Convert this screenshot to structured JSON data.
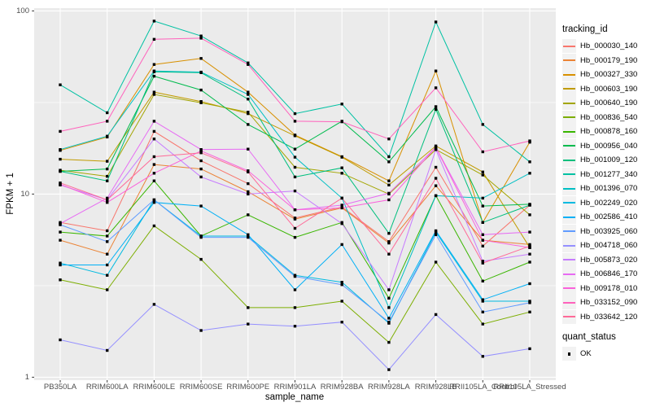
{
  "page": {
    "background": "#FFFFFF"
  },
  "axis": {
    "text_color": "#4D4D4D",
    "title_color": "#000000",
    "tick_color": "#333333"
  },
  "legend": {
    "tracking_title": "tracking_id",
    "quant_title": "quant_status",
    "quant_items": [
      {
        "label": "OK",
        "symbol": "black-square-point"
      }
    ]
  },
  "chart_data": {
    "type": "line",
    "title": "",
    "xlabel": "sample_name",
    "ylabel": "FPKM + 1",
    "yscale": "log10",
    "ylim": [
      1,
      100
    ],
    "y_major_ticks": [
      1,
      10,
      100
    ],
    "y_minor_ticks": [
      3.162,
      31.62
    ],
    "grid": "on",
    "panel_bg": "#EBEBEB",
    "grid_color": "#FFFFFF",
    "point_shape": "filled-square",
    "point_color": "#000000",
    "legend_position": "right",
    "categories": [
      "PB350LA",
      "RRIM600LA",
      "RRIM600LE",
      "RRIM600SE",
      "RRIM600PE",
      "RRIM901LA",
      "RRIM928BA",
      "RRIM928LA",
      "RRIM928LB",
      "RRII105LA_Control",
      "RRII105LA_Stressed"
    ],
    "series": [
      {
        "name": "Hb_000030_140",
        "color": "#F8766D",
        "values": [
          7.0,
          6.3,
          22,
          15.2,
          11.4,
          7.4,
          8.5,
          5.5,
          14,
          5.2,
          8.7
        ]
      },
      {
        "name": "Hb_000179_190",
        "color": "#EB8335",
        "values": [
          5.6,
          4.7,
          14.5,
          13.7,
          10.3,
          7.3,
          8.4,
          5.4,
          11.1,
          5.6,
          5.3
        ]
      },
      {
        "name": "Hb_000327_330",
        "color": "#D89000",
        "values": [
          17.3,
          20.5,
          51,
          55,
          36,
          21,
          16,
          11.8,
          47,
          7.0,
          19.2
        ]
      },
      {
        "name": "Hb_000603_190",
        "color": "#C09B00",
        "values": [
          15.5,
          15.1,
          36,
          32,
          27.5,
          20.8,
          15.9,
          11.2,
          18.3,
          13.2,
          5.1
        ]
      },
      {
        "name": "Hb_000640_190",
        "color": "#A3A500",
        "values": [
          13.5,
          12.5,
          35,
          31.5,
          28,
          14,
          13,
          10.0,
          17.5,
          12.7,
          7.7
        ]
      },
      {
        "name": "Hb_000836_540",
        "color": "#7CAE00",
        "values": [
          3.4,
          3.0,
          6.7,
          4.4,
          2.4,
          2.4,
          2.6,
          1.55,
          4.25,
          1.95,
          2.27
        ]
      },
      {
        "name": "Hb_000878_160",
        "color": "#39B600",
        "values": [
          6.2,
          5.9,
          11.8,
          5.9,
          7.7,
          5.8,
          7.0,
          2.7,
          9.8,
          3.35,
          4.25
        ]
      },
      {
        "name": "Hb_000956_040",
        "color": "#00BB4E",
        "values": [
          13.3,
          13.7,
          44,
          37,
          24,
          17.6,
          25,
          15,
          30,
          8.6,
          8.8
        ]
      },
      {
        "name": "Hb_001009_120",
        "color": "#00BF7D",
        "values": [
          13.3,
          11.8,
          46.5,
          46,
          33,
          12.4,
          13.9,
          6.1,
          29,
          7.0,
          8.7
        ]
      },
      {
        "name": "Hb_001277_340",
        "color": "#00C1A3",
        "values": [
          39.5,
          27.8,
          88,
          73,
          52,
          27.5,
          31,
          16,
          87,
          24,
          15
        ]
      },
      {
        "name": "Hb_001396_070",
        "color": "#00BFC4",
        "values": [
          17.5,
          20.7,
          47,
          46.3,
          35,
          15.9,
          9.5,
          2.4,
          9.8,
          9.5,
          13
        ]
      },
      {
        "name": "Hb_002249_020",
        "color": "#00BAE0",
        "values": [
          4.2,
          3.6,
          9.3,
          5.9,
          5.9,
          3.6,
          3.3,
          1.97,
          6.2,
          2.6,
          2.6
        ]
      },
      {
        "name": "Hb_002586_410",
        "color": "#00B0F6",
        "values": [
          4.1,
          4.1,
          9.0,
          8.6,
          6.0,
          3.0,
          5.3,
          2.1,
          6.3,
          2.65,
          3.24
        ]
      },
      {
        "name": "Hb_003925_060",
        "color": "#619CFF",
        "values": [
          6.8,
          5.5,
          9.3,
          5.8,
          5.8,
          3.55,
          3.2,
          2.0,
          6.0,
          2.27,
          2.55
        ]
      },
      {
        "name": "Hb_004718_060",
        "color": "#9590FF",
        "values": [
          1.6,
          1.4,
          2.5,
          1.8,
          1.95,
          1.9,
          2.0,
          1.1,
          2.2,
          1.3,
          1.43
        ]
      },
      {
        "name": "Hb_005873_020",
        "color": "#C77CFF",
        "values": [
          11.2,
          9.3,
          20,
          12.4,
          10.0,
          10.4,
          6.9,
          3.0,
          17.5,
          4.3,
          4.7
        ]
      },
      {
        "name": "Hb_006846_170",
        "color": "#E76BF3",
        "values": [
          6.9,
          9.5,
          25,
          17.5,
          17.6,
          8.2,
          8.7,
          10.1,
          18,
          6.0,
          6.2
        ]
      },
      {
        "name": "Hb_009178_010",
        "color": "#FA62DB",
        "values": [
          11.3,
          9.0,
          13,
          17.2,
          13.4,
          8.2,
          8.4,
          9.3,
          18,
          5.6,
          5.1
        ]
      },
      {
        "name": "Hb_033152_090",
        "color": "#FF62BC",
        "values": [
          22,
          25,
          70,
          71,
          51,
          25,
          24.8,
          20,
          38,
          17,
          19.5
        ]
      },
      {
        "name": "Hb_033642_120",
        "color": "#FF6A98",
        "values": [
          11.5,
          9.3,
          16,
          16.8,
          13.2,
          6.5,
          9.5,
          4.7,
          12.2,
          4.2,
          5.2
        ]
      }
    ]
  }
}
